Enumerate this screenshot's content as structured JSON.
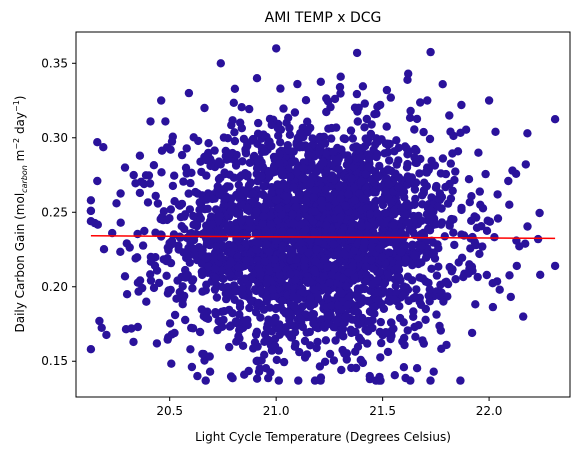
{
  "chart_data": {
    "type": "scatter",
    "title": "AMI TEMP x DCG",
    "xlabel": "Light Cycle Temperature (Degrees Celsius)",
    "ylabel_parts": {
      "prefix": "Daily Carbon Gain (mol",
      "sub": "carbon",
      "mid1": " m",
      "sup1": "−2",
      "mid2": " day",
      "sup2": "−1",
      "suffix": ")"
    },
    "xlim": [
      20.06,
      22.38
    ],
    "ylim": [
      0.126,
      0.371
    ],
    "xticks": [
      20.5,
      21.0,
      21.5,
      22.0
    ],
    "xtick_labels": [
      "20.5",
      "21.0",
      "21.5",
      "22.0"
    ],
    "yticks": [
      0.15,
      0.2,
      0.25,
      0.3,
      0.35
    ],
    "ytick_labels": [
      "0.15",
      "0.20",
      "0.25",
      "0.30",
      "0.35"
    ],
    "grid": false,
    "point_color": "#2a129b",
    "trend_color": "#ff0000",
    "distribution": {
      "x_mean": 21.18,
      "x_sd": 0.33,
      "y_mean": 0.234,
      "y_sd": 0.036,
      "count": 3000
    },
    "outliers": [
      [
        20.13,
        0.258
      ],
      [
        20.13,
        0.244
      ],
      [
        20.16,
        0.297
      ],
      [
        20.16,
        0.271
      ],
      [
        20.17,
        0.177
      ],
      [
        20.23,
        0.236
      ],
      [
        20.25,
        0.256
      ],
      [
        20.27,
        0.243
      ],
      [
        20.29,
        0.28
      ],
      [
        20.29,
        0.207
      ],
      [
        20.3,
        0.195
      ],
      [
        20.32,
        0.172
      ],
      [
        20.33,
        0.163
      ],
      [
        20.35,
        0.173
      ],
      [
        20.34,
        0.219
      ],
      [
        20.36,
        0.288
      ],
      [
        20.36,
        0.263
      ],
      [
        20.38,
        0.269
      ],
      [
        20.39,
        0.19
      ],
      [
        20.41,
        0.311
      ],
      [
        20.44,
        0.162
      ],
      [
        20.46,
        0.325
      ],
      [
        20.48,
        0.311
      ],
      [
        20.51,
        0.168
      ],
      [
        20.59,
        0.33
      ],
      [
        20.63,
        0.14
      ],
      [
        20.69,
        0.143
      ],
      [
        20.74,
        0.35
      ],
      [
        20.85,
        0.141
      ],
      [
        20.91,
        0.34
      ],
      [
        20.92,
        0.143
      ],
      [
        21.0,
        0.36
      ],
      [
        21.02,
        0.333
      ],
      [
        21.1,
        0.336
      ],
      [
        21.21,
        0.139
      ],
      [
        21.3,
        0.334
      ],
      [
        21.38,
        0.357
      ],
      [
        21.44,
        0.14
      ],
      [
        21.49,
        0.137
      ],
      [
        21.52,
        0.332
      ],
      [
        21.6,
        0.146
      ],
      [
        21.62,
        0.343
      ],
      [
        21.71,
        0.325
      ],
      [
        21.74,
        0.143
      ],
      [
        21.8,
        0.161
      ],
      [
        21.87,
        0.322
      ],
      [
        21.92,
        0.169
      ],
      [
        21.95,
        0.29
      ],
      [
        22.0,
        0.325
      ],
      [
        22.03,
        0.304
      ],
      [
        22.04,
        0.262
      ],
      [
        22.05,
        0.198
      ],
      [
        22.09,
        0.271
      ],
      [
        22.11,
        0.278
      ],
      [
        22.13,
        0.214
      ],
      [
        22.18,
        0.303
      ],
      [
        22.24,
        0.208
      ],
      [
        22.23,
        0.232
      ],
      [
        22.31,
        0.214
      ],
      [
        22.16,
        0.18
      ]
    ],
    "trend": {
      "x": [
        20.13,
        22.31
      ],
      "y": [
        0.2342,
        0.2325
      ]
    }
  }
}
